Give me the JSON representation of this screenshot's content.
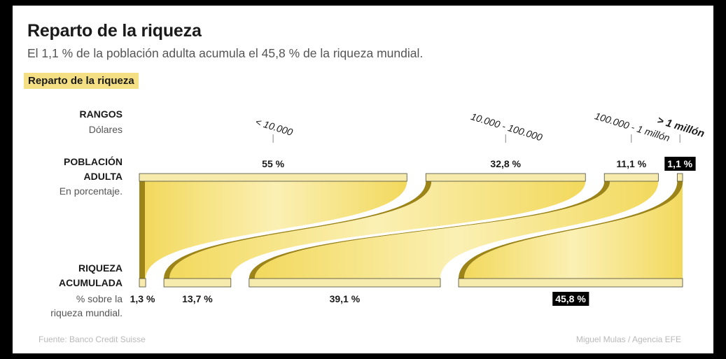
{
  "title": "Reparto de la riqueza",
  "subtitle": "El 1,1 % de la población adulta acumula el 45,8 % de la riqueza mundial.",
  "tag": "Reparto de la riqueza",
  "labels": {
    "rangos_title": "RANGOS",
    "rangos_sub": "Dólares",
    "poblacion_title_1": "POBLACIÓN",
    "poblacion_title_2": "ADULTA",
    "poblacion_sub": "En porcentaje.",
    "riqueza_title_1": "RIQUEZA",
    "riqueza_title_2": "ACUMULADA",
    "riqueza_sub_1": "% sobre la",
    "riqueza_sub_2": "riqueza mundial."
  },
  "source": "Fuente: Banco Credit Suisse",
  "credit": "Miguel Mulas / Agencia EFE",
  "colors": {
    "bar_fill": "#f6ebad",
    "flow_light": "#fdf6c8",
    "flow_mid": "#f3dc6a",
    "flow_dark": "#9c8418",
    "highlight_bg": "#000000",
    "highlight_text": "#ffffff"
  },
  "chart_data": {
    "type": "sankey",
    "categories": [
      "< 10.000",
      "10.000 - 100.000",
      "100.000 - 1 millón",
      "> 1 millón"
    ],
    "series": [
      {
        "name": "POBLACIÓN ADULTA",
        "values": [
          55,
          32.8,
          11.1,
          1.1
        ],
        "labels": [
          "55 %",
          "32,8 %",
          "11,1 %",
          "1,1 %"
        ]
      },
      {
        "name": "RIQUEZA ACUMULADA",
        "values": [
          1.3,
          13.7,
          39.1,
          45.8
        ],
        "labels": [
          "1,3 %",
          "13,7 %",
          "39,1 %",
          "45,8 %"
        ]
      }
    ],
    "highlight_index": 3
  }
}
